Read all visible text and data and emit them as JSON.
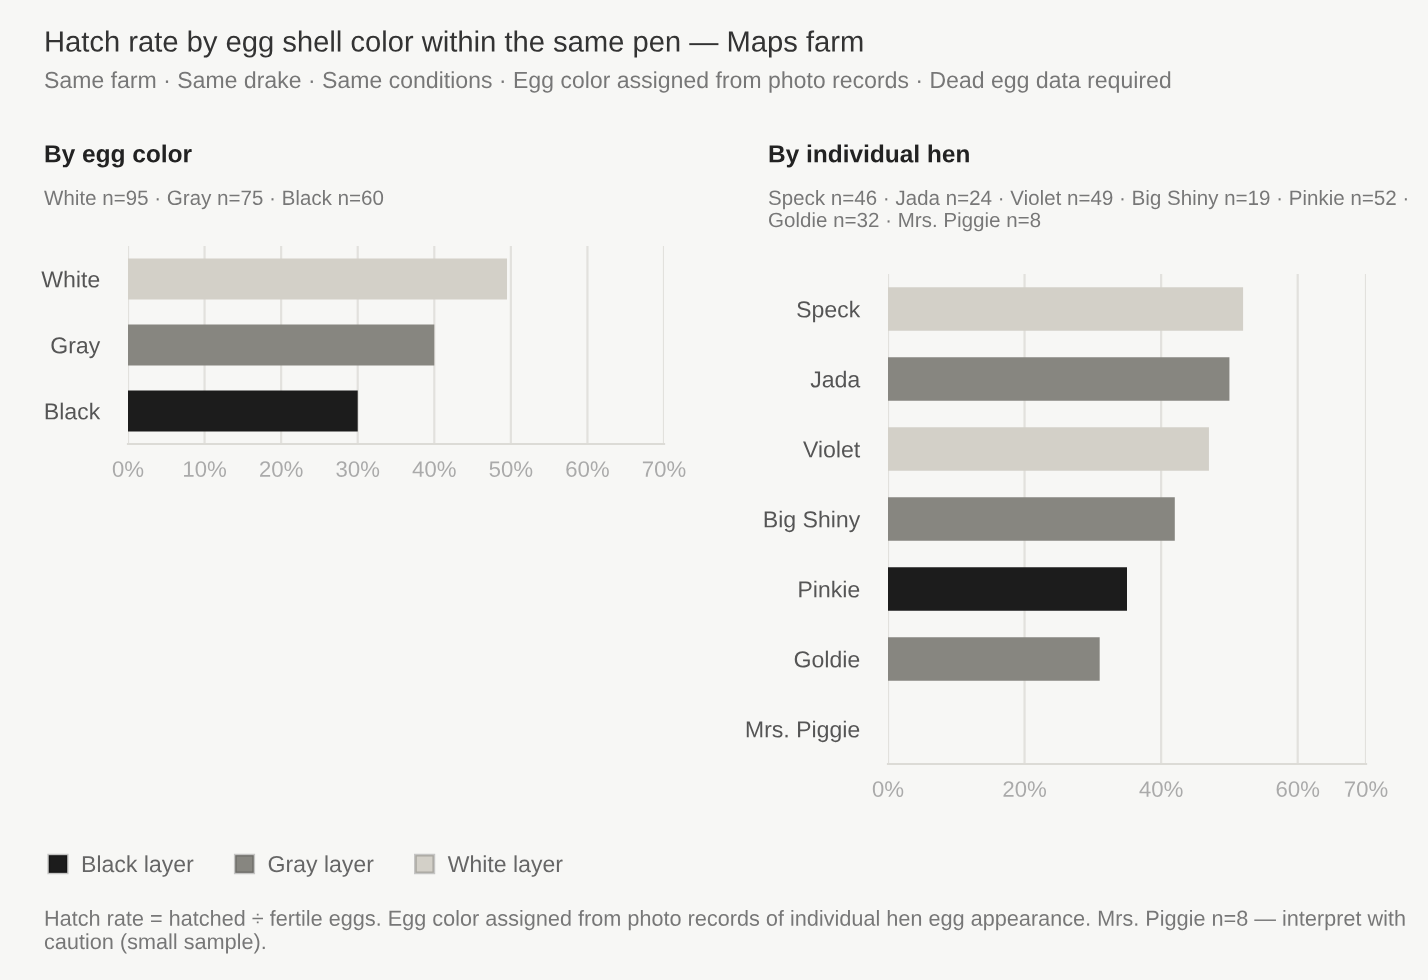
{
  "chart_data": [
    {
      "type": "other",
      "title": "Hatch rate by egg shell color within the same pen — Maps farm",
      "subtitle": "Same farm · Same drake · Same conditions · Egg color assigned from photo records · Dead egg data required",
      "annotations": [
        "Hatch rate = hatched ÷ fertile eggs. Egg color assigned from photo records of individual hen egg appearance. Mrs. Piggie n=8 — interpret with caution (small sample)."
      ]
    },
    {
      "type": "bar",
      "orientation": "horizontal",
      "title": "By egg color",
      "subtitle": "White n=95 · Gray n=75 · Black n=60",
      "categories": [
        "White",
        "Gray",
        "Black"
      ],
      "series": [
        {
          "name": "Black layer",
          "color": "#1c1c1c",
          "values": [
            null,
            null,
            30
          ]
        },
        {
          "name": "Gray layer",
          "color": "#878680",
          "values": [
            null,
            40,
            null
          ]
        },
        {
          "name": "White layer",
          "color": "#d3d0c8",
          "values": [
            49.5,
            null,
            null
          ]
        }
      ],
      "xlim": [
        0,
        70
      ],
      "xticks": [
        {
          "value": 0,
          "label": "0%"
        },
        {
          "value": 10,
          "label": "10%"
        },
        {
          "value": 20,
          "label": "20%"
        },
        {
          "value": 30,
          "label": "30%"
        },
        {
          "value": 40,
          "label": "40%"
        },
        {
          "value": 50,
          "label": "50%"
        },
        {
          "value": 60,
          "label": "60%"
        },
        {
          "value": 70,
          "label": "70%"
        }
      ],
      "grid": "x",
      "legend": "bottom"
    },
    {
      "type": "bar",
      "orientation": "horizontal",
      "title": "By individual hen",
      "subtitle": "Speck n=46 · Jada n=24 · Violet n=49 · Big Shiny n=19 · Pinkie n=52 · Goldie n=32 · Mrs. Piggie n=8",
      "categories": [
        "Speck",
        "Jada",
        "Violet",
        "Big Shiny",
        "Pinkie",
        "Goldie",
        "Mrs. Piggie"
      ],
      "values": [
        52,
        50,
        47,
        42,
        35,
        31,
        0
      ],
      "colors": [
        "#d3d0c8",
        "#878680",
        "#d3d0c8",
        "#878680",
        "#1c1c1c",
        "#878680",
        "#878680"
      ],
      "xlim": [
        0,
        70
      ],
      "xticks": [
        {
          "value": 0,
          "label": "0%"
        },
        {
          "value": 20,
          "label": "20%"
        },
        {
          "value": 40,
          "label": "40%"
        },
        {
          "value": 60,
          "label": "60%"
        },
        {
          "value": 70,
          "label": "70%"
        }
      ],
      "grid": "x"
    }
  ]
}
